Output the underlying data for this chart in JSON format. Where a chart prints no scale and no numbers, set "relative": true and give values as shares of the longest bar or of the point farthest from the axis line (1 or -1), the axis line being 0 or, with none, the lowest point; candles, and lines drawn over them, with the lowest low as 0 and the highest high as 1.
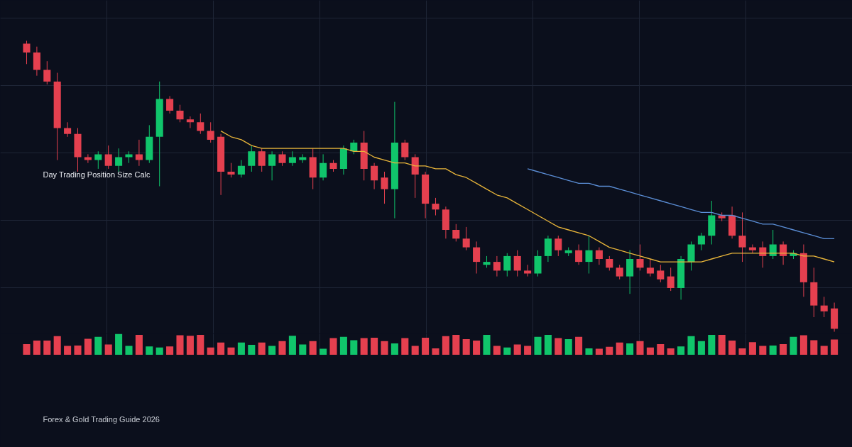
{
  "chart_data": [
    {
      "type": "candlestick",
      "title": "Day Trading Position Size Calc",
      "relative": true,
      "grid": true,
      "categories": [
        null,
        null,
        null,
        null,
        null,
        null,
        null,
        null,
        null,
        null,
        null,
        null,
        null,
        null,
        null,
        null,
        null,
        null,
        null,
        null,
        null,
        null,
        null,
        null,
        null,
        null,
        null,
        null,
        null,
        null,
        null,
        null,
        null,
        null,
        null,
        null,
        null,
        null,
        null,
        null,
        null,
        null,
        null,
        null,
        null,
        null,
        null,
        null,
        null,
        null,
        null,
        null,
        null,
        null,
        null,
        null,
        null,
        null,
        null,
        null,
        null,
        null,
        null,
        null,
        null,
        null,
        null,
        null,
        null,
        null,
        null,
        null,
        null,
        null,
        null,
        null,
        null,
        null,
        null,
        null
      ],
      "ohlc": [
        [
          0.99,
          1,
          0.92,
          0.96
        ],
        [
          0.96,
          0.98,
          0.88,
          0.9
        ],
        [
          0.9,
          0.93,
          0.85,
          0.86
        ],
        [
          0.86,
          0.89,
          0.59,
          0.7
        ],
        [
          0.7,
          0.72,
          0.67,
          0.68
        ],
        [
          0.68,
          0.7,
          0.55,
          0.6
        ],
        [
          0.6,
          0.61,
          0.58,
          0.59
        ],
        [
          0.59,
          0.62,
          0.56,
          0.61
        ],
        [
          0.61,
          0.64,
          0.56,
          0.57
        ],
        [
          0.57,
          0.63,
          0.55,
          0.6
        ],
        [
          0.6,
          0.62,
          0.58,
          0.61
        ],
        [
          0.61,
          0.66,
          0.57,
          0.59
        ],
        [
          0.59,
          0.71,
          0.58,
          0.67
        ],
        [
          0.67,
          0.86,
          0.5,
          0.8
        ],
        [
          0.8,
          0.81,
          0.75,
          0.76
        ],
        [
          0.76,
          0.78,
          0.72,
          0.73
        ],
        [
          0.73,
          0.74,
          0.7,
          0.72
        ],
        [
          0.72,
          0.75,
          0.68,
          0.69
        ],
        [
          0.69,
          0.72,
          0.65,
          0.66
        ],
        [
          0.67,
          0.68,
          0.47,
          0.55
        ],
        [
          0.55,
          0.58,
          0.53,
          0.54
        ],
        [
          0.54,
          0.59,
          0.53,
          0.57
        ],
        [
          0.57,
          0.64,
          0.55,
          0.62
        ],
        [
          0.62,
          0.63,
          0.55,
          0.57
        ],
        [
          0.57,
          0.62,
          0.52,
          0.61
        ],
        [
          0.61,
          0.62,
          0.57,
          0.58
        ],
        [
          0.58,
          0.62,
          0.57,
          0.6
        ],
        [
          0.59,
          0.61,
          0.58,
          0.6
        ],
        [
          0.6,
          0.63,
          0.49,
          0.53
        ],
        [
          0.53,
          0.61,
          0.52,
          0.58
        ],
        [
          0.58,
          0.59,
          0.55,
          0.56
        ],
        [
          0.56,
          0.64,
          0.54,
          0.63
        ],
        [
          0.62,
          0.66,
          0.61,
          0.65
        ],
        [
          0.65,
          0.69,
          0.52,
          0.56
        ],
        [
          0.57,
          0.58,
          0.49,
          0.52
        ],
        [
          0.53,
          0.55,
          0.44,
          0.49
        ],
        [
          0.49,
          0.79,
          0.39,
          0.65
        ],
        [
          0.65,
          0.66,
          0.59,
          0.6
        ],
        [
          0.6,
          0.61,
          0.46,
          0.54
        ],
        [
          0.54,
          0.55,
          0.39,
          0.44
        ],
        [
          0.44,
          0.46,
          0.4,
          0.42
        ],
        [
          0.42,
          0.43,
          0.32,
          0.35
        ],
        [
          0.35,
          0.37,
          0.31,
          0.32
        ],
        [
          0.32,
          0.36,
          0.28,
          0.29
        ],
        [
          0.29,
          0.31,
          0.2,
          0.24
        ],
        [
          0.23,
          0.26,
          0.22,
          0.24
        ],
        [
          0.24,
          0.26,
          0.19,
          0.21
        ],
        [
          0.21,
          0.27,
          0.19,
          0.26
        ],
        [
          0.26,
          0.28,
          0.19,
          0.21
        ],
        [
          0.21,
          0.23,
          0.19,
          0.2
        ],
        [
          0.2,
          0.28,
          0.19,
          0.26
        ],
        [
          0.26,
          0.33,
          0.24,
          0.32
        ],
        [
          0.32,
          0.33,
          0.26,
          0.28
        ],
        [
          0.27,
          0.29,
          0.26,
          0.28
        ],
        [
          0.28,
          0.3,
          0.23,
          0.24
        ],
        [
          0.24,
          0.33,
          0.2,
          0.28
        ],
        [
          0.28,
          0.29,
          0.23,
          0.25
        ],
        [
          0.25,
          0.26,
          0.21,
          0.22
        ],
        [
          0.22,
          0.23,
          0.18,
          0.19
        ],
        [
          0.19,
          0.28,
          0.13,
          0.25
        ],
        [
          0.25,
          0.3,
          0.21,
          0.22
        ],
        [
          0.22,
          0.25,
          0.19,
          0.2
        ],
        [
          0.21,
          0.23,
          0.17,
          0.18
        ],
        [
          0.19,
          0.22,
          0.14,
          0.15
        ],
        [
          0.15,
          0.26,
          0.11,
          0.25
        ],
        [
          0.24,
          0.31,
          0.21,
          0.3
        ],
        [
          0.3,
          0.34,
          0.28,
          0.33
        ],
        [
          0.33,
          0.45,
          0.3,
          0.4
        ],
        [
          0.4,
          0.41,
          0.38,
          0.39
        ],
        [
          0.4,
          0.43,
          0.32,
          0.33
        ],
        [
          0.33,
          0.41,
          0.24,
          0.29
        ],
        [
          0.29,
          0.3,
          0.27,
          0.28
        ],
        [
          0.29,
          0.31,
          0.22,
          0.26
        ],
        [
          0.26,
          0.35,
          0.25,
          0.3
        ],
        [
          0.3,
          0.31,
          0.23,
          0.26
        ],
        [
          0.26,
          0.28,
          0.25,
          0.27
        ],
        [
          0.27,
          0.3,
          0.12,
          0.17
        ],
        [
          0.17,
          0.22,
          0.05,
          0.09
        ],
        [
          0.09,
          0.12,
          0.05,
          0.07
        ],
        [
          0.08,
          0.1,
          0,
          0.01
        ]
      ],
      "colors": [
        "#e5404f",
        "#e5404f",
        "#e5404f",
        "#e5404f",
        "#e5404f",
        "#e5404f",
        "#e5404f",
        "#10c56b",
        "#e5404f",
        "#10c56b",
        "#10c56b",
        "#e5404f",
        "#10c56b",
        "#10c56b",
        "#e5404f",
        "#e5404f",
        "#e5404f",
        "#e5404f",
        "#e5404f",
        "#e5404f",
        "#e5404f",
        "#10c56b",
        "#10c56b",
        "#e5404f",
        "#10c56b",
        "#e5404f",
        "#10c56b",
        "#10c56b",
        "#e5404f",
        "#10c56b",
        "#e5404f",
        "#10c56b",
        "#10c56b",
        "#e5404f",
        "#e5404f",
        "#e5404f",
        "#10c56b",
        "#e5404f",
        "#e5404f",
        "#e5404f",
        "#e5404f",
        "#e5404f",
        "#e5404f",
        "#e5404f",
        "#e5404f",
        "#10c56b",
        "#e5404f",
        "#10c56b",
        "#e5404f",
        "#e5404f",
        "#10c56b",
        "#10c56b",
        "#e5404f",
        "#10c56b",
        "#e5404f",
        "#10c56b",
        "#e5404f",
        "#e5404f",
        "#e5404f",
        "#10c56b",
        "#e5404f",
        "#e5404f",
        "#e5404f",
        "#e5404f",
        "#10c56b",
        "#10c56b",
        "#10c56b",
        "#10c56b",
        "#e5404f",
        "#e5404f",
        "#e5404f",
        "#e5404f",
        "#e5404f",
        "#10c56b",
        "#e5404f",
        "#10c56b",
        "#e5404f",
        "#e5404f",
        "#e5404f",
        "#e5404f"
      ],
      "series": [
        {
          "type": "line",
          "color": "#e8b53a",
          "values": [
            null,
            null,
            null,
            null,
            null,
            null,
            null,
            null,
            null,
            null,
            null,
            null,
            null,
            null,
            null,
            null,
            null,
            null,
            null,
            0.69,
            0.67,
            0.66,
            0.64,
            0.63,
            0.63,
            0.63,
            0.63,
            0.63,
            0.63,
            0.63,
            0.63,
            0.63,
            0.62,
            0.62,
            0.6,
            0.59,
            0.58,
            0.58,
            0.57,
            0.57,
            0.56,
            0.56,
            0.54,
            0.53,
            0.51,
            0.49,
            0.47,
            0.46,
            0.44,
            0.42,
            0.4,
            0.38,
            0.36,
            0.35,
            0.34,
            0.33,
            0.31,
            0.29,
            0.28,
            0.27,
            0.26,
            0.25,
            0.24,
            0.24,
            0.24,
            0.24,
            0.24,
            0.25,
            0.26,
            0.27,
            0.27,
            0.27,
            0.27,
            0.27,
            0.27,
            0.27,
            0.26,
            0.26,
            0.25,
            0.24
          ]
        },
        {
          "type": "line",
          "color": "#5b8ed6",
          "values": [
            null,
            null,
            null,
            null,
            null,
            null,
            null,
            null,
            null,
            null,
            null,
            null,
            null,
            null,
            null,
            null,
            null,
            null,
            null,
            null,
            null,
            null,
            null,
            null,
            null,
            null,
            null,
            null,
            null,
            null,
            null,
            null,
            null,
            null,
            null,
            null,
            null,
            null,
            null,
            null,
            null,
            null,
            null,
            null,
            null,
            null,
            null,
            null,
            null,
            0.56,
            0.55,
            0.54,
            0.53,
            0.52,
            0.51,
            0.51,
            0.5,
            0.5,
            0.49,
            0.48,
            0.47,
            0.46,
            0.45,
            0.44,
            0.43,
            0.42,
            0.41,
            0.41,
            0.4,
            0.4,
            0.39,
            0.38,
            0.37,
            0.37,
            0.36,
            0.35,
            0.34,
            0.33,
            0.32,
            0.32
          ]
        }
      ],
      "annotations": [
        "Forex & Gold Trading Guide 2026"
      ]
    },
    {
      "type": "bar",
      "relative": true,
      "grid": "x",
      "categories": [
        null,
        null,
        null,
        null,
        null,
        null,
        null,
        null,
        null,
        null,
        null,
        null,
        null,
        null,
        null,
        null,
        null,
        null,
        null,
        null,
        null,
        null,
        null,
        null,
        null,
        null,
        null,
        null,
        null,
        null,
        null,
        null,
        null,
        null,
        null,
        null,
        null,
        null,
        null,
        null,
        null,
        null,
        null,
        null,
        null,
        null,
        null,
        null,
        null,
        null,
        null,
        null,
        null,
        null,
        null,
        null,
        null,
        null,
        null,
        null,
        null,
        null,
        null,
        null,
        null,
        null,
        null,
        null,
        null,
        null,
        null,
        null,
        null,
        null,
        null,
        null,
        null,
        null,
        null,
        null
      ],
      "values": [
        0.52,
        0.68,
        0.68,
        0.89,
        0.43,
        0.45,
        0.77,
        0.86,
        0.5,
        1.0,
        0.43,
        0.95,
        0.41,
        0.36,
        0.41,
        0.93,
        0.91,
        0.95,
        0.36,
        0.59,
        0.36,
        0.59,
        0.48,
        0.59,
        0.43,
        0.66,
        0.91,
        0.5,
        0.66,
        0.3,
        0.8,
        0.86,
        0.7,
        0.8,
        0.82,
        0.66,
        0.55,
        0.8,
        0.43,
        0.82,
        0.32,
        0.89,
        0.95,
        0.75,
        0.68,
        0.95,
        0.43,
        0.36,
        0.5,
        0.43,
        0.86,
        0.95,
        0.8,
        0.75,
        0.86,
        0.32,
        0.3,
        0.39,
        0.59,
        0.55,
        0.66,
        0.36,
        0.52,
        0.32,
        0.41,
        0.89,
        0.66,
        0.95,
        0.95,
        0.68,
        0.32,
        0.61,
        0.43,
        0.45,
        0.52,
        0.86,
        0.93,
        0.7,
        0.43,
        0.73
      ],
      "colors": [
        "#e5404f",
        "#e5404f",
        "#e5404f",
        "#e5404f",
        "#e5404f",
        "#e5404f",
        "#e5404f",
        "#10c56b",
        "#e5404f",
        "#10c56b",
        "#10c56b",
        "#e5404f",
        "#10c56b",
        "#10c56b",
        "#e5404f",
        "#e5404f",
        "#e5404f",
        "#e5404f",
        "#e5404f",
        "#e5404f",
        "#e5404f",
        "#10c56b",
        "#10c56b",
        "#e5404f",
        "#10c56b",
        "#e5404f",
        "#10c56b",
        "#10c56b",
        "#e5404f",
        "#10c56b",
        "#e5404f",
        "#10c56b",
        "#10c56b",
        "#e5404f",
        "#e5404f",
        "#e5404f",
        "#10c56b",
        "#e5404f",
        "#e5404f",
        "#e5404f",
        "#e5404f",
        "#e5404f",
        "#e5404f",
        "#e5404f",
        "#e5404f",
        "#10c56b",
        "#e5404f",
        "#10c56b",
        "#e5404f",
        "#e5404f",
        "#10c56b",
        "#10c56b",
        "#e5404f",
        "#10c56b",
        "#e5404f",
        "#10c56b",
        "#e5404f",
        "#e5404f",
        "#e5404f",
        "#10c56b",
        "#e5404f",
        "#e5404f",
        "#e5404f",
        "#e5404f",
        "#10c56b",
        "#10c56b",
        "#10c56b",
        "#10c56b",
        "#e5404f",
        "#e5404f",
        "#e5404f",
        "#e5404f",
        "#e5404f",
        "#10c56b",
        "#e5404f",
        "#10c56b",
        "#e5404f",
        "#e5404f",
        "#e5404f",
        "#e5404f"
      ]
    }
  ]
}
